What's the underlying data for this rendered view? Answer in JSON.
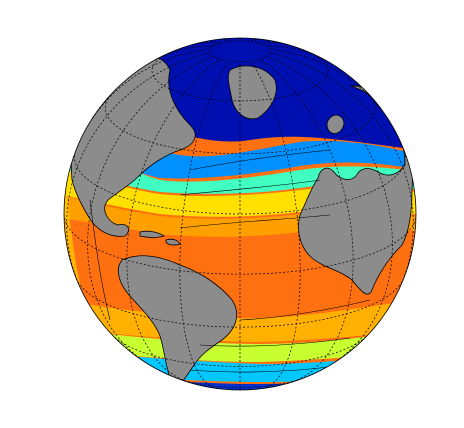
{
  "map": {
    "projection": "orthographic",
    "center": {
      "lon": -40,
      "lat": 20
    },
    "graticule_step_deg": 20,
    "colormap": "jet",
    "land_color": "#8c8c8c",
    "background": "#ffffff",
    "coastline_color": "#000000",
    "graticule_color": "#000000",
    "contour_color": "#000000"
  }
}
